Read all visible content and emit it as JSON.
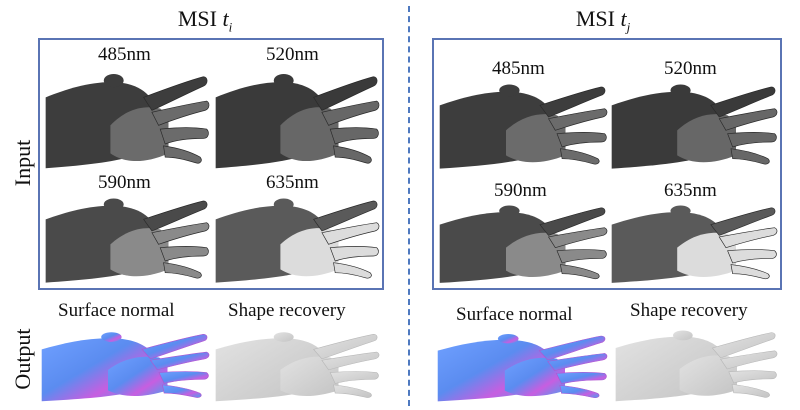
{
  "columns": [
    {
      "title_prefix": "MSI",
      "title_var": "t",
      "title_sub": "i",
      "inputs": [
        {
          "label": "485nm",
          "tone": "#3d3d3d",
          "finger_tone": "#6b6b6b"
        },
        {
          "label": "520nm",
          "tone": "#3a3a3a",
          "finger_tone": "#676767"
        },
        {
          "label": "590nm",
          "tone": "#4a4a4a",
          "finger_tone": "#8a8a8a"
        },
        {
          "label": "635nm",
          "tone": "#5a5a5a",
          "finger_tone": "#dcdcdc"
        }
      ],
      "outputs": [
        {
          "label": "Surface normal",
          "kind": "normal"
        },
        {
          "label": "Shape recovery",
          "kind": "shape"
        }
      ]
    },
    {
      "title_prefix": "MSI",
      "title_var": "t",
      "title_sub": "j",
      "inputs": [
        {
          "label": "485nm",
          "tone": "#3d3d3d",
          "finger_tone": "#6b6b6b"
        },
        {
          "label": "520nm",
          "tone": "#3a3a3a",
          "finger_tone": "#676767"
        },
        {
          "label": "590nm",
          "tone": "#4a4a4a",
          "finger_tone": "#8a8a8a"
        },
        {
          "label": "635nm",
          "tone": "#5a5a5a",
          "finger_tone": "#dcdcdc"
        }
      ],
      "outputs": [
        {
          "label": "Surface normal",
          "kind": "normal"
        },
        {
          "label": "Shape recovery",
          "kind": "shape"
        }
      ]
    }
  ],
  "row_labels": {
    "input": "Input",
    "output": "Output"
  },
  "colors": {
    "panel_border": "#5a74b4",
    "divider": "#4e79c0",
    "normal_blue": "#5b8cf0",
    "normal_pink": "#d35ad6",
    "shape_gray": "#d2d2d2"
  }
}
